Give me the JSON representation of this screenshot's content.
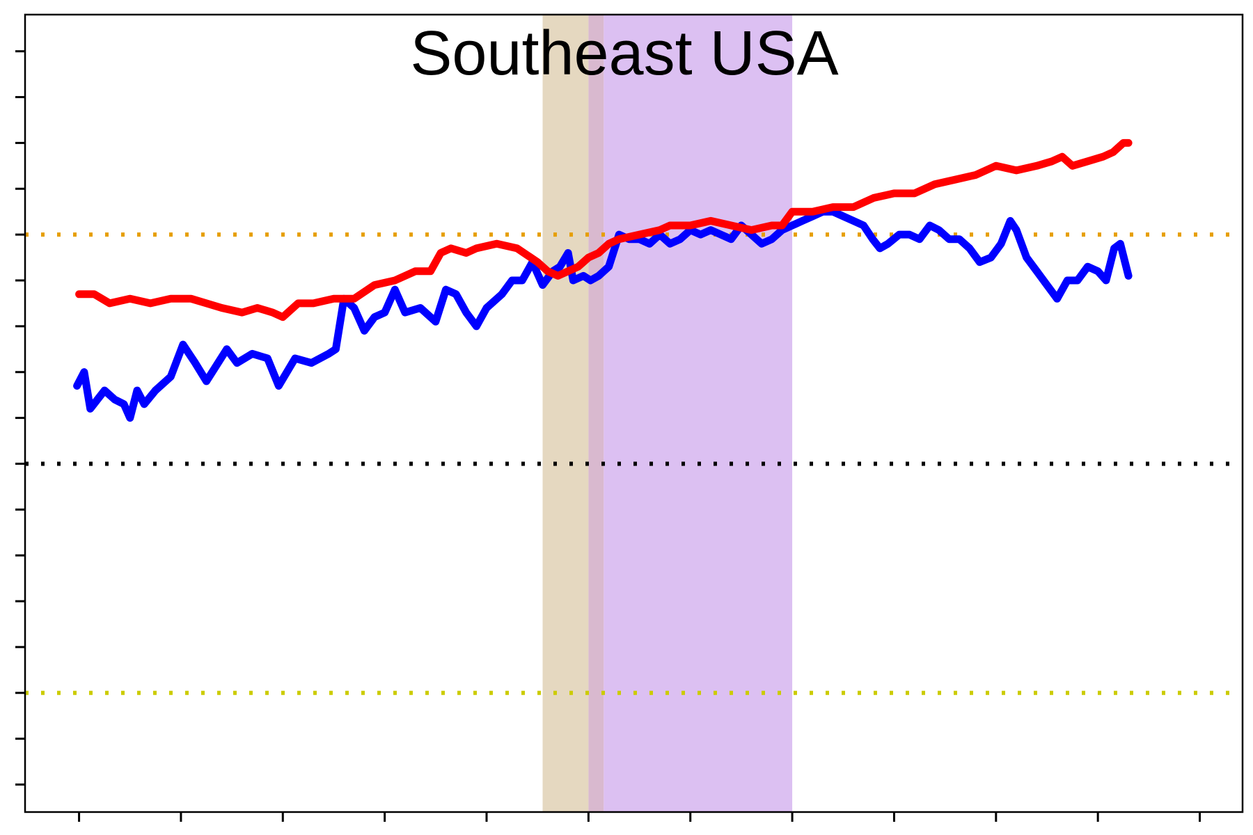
{
  "chart_data": {
    "type": "line",
    "title": "Southeast USA",
    "xlabel": "",
    "ylabel": "",
    "xlim": [
      -5.3,
      114.2
    ],
    "ylim": [
      -7.6,
      9.8
    ],
    "x_ticks": [
      0,
      10,
      20,
      30,
      40,
      50,
      60,
      70,
      80,
      90,
      100,
      110
    ],
    "y_ticks": [
      -7,
      -6,
      -5,
      -4,
      -3,
      -2,
      -1,
      0,
      1,
      2,
      3,
      4,
      5,
      6,
      7,
      8,
      9
    ],
    "reference_lines": [
      {
        "y": 0,
        "color": "#000000",
        "style": "dotted"
      },
      {
        "y": 5,
        "color": "#e69f00",
        "style": "dotted"
      },
      {
        "y": -5,
        "color": "#cccc00",
        "style": "dotted"
      }
    ],
    "shaded_regions": [
      {
        "x_start": 45.5,
        "x_end": 50,
        "color": "#e5d8c0"
      },
      {
        "x_start": 50,
        "x_end": 51.5,
        "color": "#d9b9cf"
      },
      {
        "x_start": 51.5,
        "x_end": 70,
        "color": "#dcc0f2"
      }
    ],
    "series": [
      {
        "color": "#0000ff",
        "points": [
          [
            -0.2,
            1.7
          ],
          [
            0.5,
            2.0
          ],
          [
            1.1,
            1.2
          ],
          [
            2.5,
            1.6
          ],
          [
            3.5,
            1.4
          ],
          [
            4.4,
            1.3
          ],
          [
            5.0,
            1.0
          ],
          [
            5.7,
            1.6
          ],
          [
            6.4,
            1.3
          ],
          [
            7.5,
            1.6
          ],
          [
            9.0,
            1.9
          ],
          [
            10.2,
            2.6
          ],
          [
            11.4,
            2.2
          ],
          [
            12.5,
            1.8
          ],
          [
            14.5,
            2.5
          ],
          [
            15.5,
            2.2
          ],
          [
            17.0,
            2.4
          ],
          [
            18.5,
            2.3
          ],
          [
            19.6,
            1.7
          ],
          [
            21.2,
            2.3
          ],
          [
            22.8,
            2.2
          ],
          [
            24.5,
            2.4
          ],
          [
            25.2,
            2.5
          ],
          [
            26.0,
            3.6
          ],
          [
            27.0,
            3.4
          ],
          [
            28.0,
            2.9
          ],
          [
            29.0,
            3.2
          ],
          [
            30.0,
            3.3
          ],
          [
            31.0,
            3.8
          ],
          [
            32.0,
            3.3
          ],
          [
            33.5,
            3.4
          ],
          [
            35.0,
            3.1
          ],
          [
            36.0,
            3.8
          ],
          [
            37.0,
            3.7
          ],
          [
            38.0,
            3.3
          ],
          [
            39.0,
            3.0
          ],
          [
            40.0,
            3.4
          ],
          [
            41.5,
            3.7
          ],
          [
            42.5,
            4.0
          ],
          [
            43.5,
            4.0
          ],
          [
            44.5,
            4.4
          ],
          [
            45.5,
            3.9
          ],
          [
            46.5,
            4.2
          ],
          [
            47.2,
            4.3
          ],
          [
            48.0,
            4.6
          ],
          [
            48.5,
            4.0
          ],
          [
            49.5,
            4.1
          ],
          [
            50.2,
            4.0
          ],
          [
            51.0,
            4.1
          ],
          [
            52.0,
            4.3
          ],
          [
            53.0,
            5.0
          ],
          [
            54.0,
            4.9
          ],
          [
            55.0,
            4.9
          ],
          [
            56.0,
            4.8
          ],
          [
            57.0,
            5.0
          ],
          [
            58.0,
            4.8
          ],
          [
            59.0,
            4.9
          ],
          [
            60.0,
            5.1
          ],
          [
            61.0,
            5.0
          ],
          [
            62.0,
            5.1
          ],
          [
            63.0,
            5.0
          ],
          [
            64.0,
            4.9
          ],
          [
            65.0,
            5.2
          ],
          [
            66.0,
            5.0
          ],
          [
            67.0,
            4.8
          ],
          [
            68.0,
            4.9
          ],
          [
            69.0,
            5.1
          ],
          [
            70.0,
            5.2
          ],
          [
            71.0,
            5.3
          ],
          [
            72.0,
            5.4
          ],
          [
            73.0,
            5.5
          ],
          [
            74.0,
            5.5
          ],
          [
            75.0,
            5.4
          ],
          [
            76.0,
            5.3
          ],
          [
            77.0,
            5.2
          ],
          [
            77.9,
            4.9
          ],
          [
            78.6,
            4.7
          ],
          [
            79.4,
            4.8
          ],
          [
            80.5,
            5.0
          ],
          [
            81.5,
            5.0
          ],
          [
            82.5,
            4.9
          ],
          [
            83.5,
            5.2
          ],
          [
            84.4,
            5.1
          ],
          [
            85.4,
            4.9
          ],
          [
            86.4,
            4.9
          ],
          [
            87.4,
            4.7
          ],
          [
            88.4,
            4.4
          ],
          [
            89.5,
            4.5
          ],
          [
            90.5,
            4.8
          ],
          [
            91.4,
            5.3
          ],
          [
            92.0,
            5.1
          ],
          [
            93.0,
            4.5
          ],
          [
            94.0,
            4.2
          ],
          [
            95.0,
            3.9
          ],
          [
            96.0,
            3.6
          ],
          [
            97.0,
            4.0
          ],
          [
            98.0,
            4.0
          ],
          [
            99.0,
            4.3
          ],
          [
            100.0,
            4.2
          ],
          [
            100.8,
            4.0
          ],
          [
            101.6,
            4.7
          ],
          [
            102.2,
            4.8
          ],
          [
            103.0,
            4.1
          ]
        ]
      },
      {
        "color": "#ff0000",
        "points": [
          [
            0.0,
            3.7
          ],
          [
            1.5,
            3.7
          ],
          [
            3.0,
            3.5
          ],
          [
            5.0,
            3.6
          ],
          [
            7.0,
            3.5
          ],
          [
            9.0,
            3.6
          ],
          [
            11.0,
            3.6
          ],
          [
            12.5,
            3.5
          ],
          [
            14.0,
            3.4
          ],
          [
            16.0,
            3.3
          ],
          [
            17.5,
            3.4
          ],
          [
            19.0,
            3.3
          ],
          [
            20.0,
            3.2
          ],
          [
            21.5,
            3.5
          ],
          [
            23.0,
            3.5
          ],
          [
            25.0,
            3.6
          ],
          [
            27.0,
            3.6
          ],
          [
            29.0,
            3.9
          ],
          [
            31.0,
            4.0
          ],
          [
            33.0,
            4.2
          ],
          [
            34.5,
            4.2
          ],
          [
            35.5,
            4.6
          ],
          [
            36.5,
            4.7
          ],
          [
            38.0,
            4.6
          ],
          [
            39.0,
            4.7
          ],
          [
            41.0,
            4.8
          ],
          [
            43.0,
            4.7
          ],
          [
            45.0,
            4.4
          ],
          [
            46.0,
            4.2
          ],
          [
            47.0,
            4.1
          ],
          [
            48.0,
            4.2
          ],
          [
            49.0,
            4.3
          ],
          [
            50.0,
            4.5
          ],
          [
            51.0,
            4.6
          ],
          [
            52.0,
            4.8
          ],
          [
            53.0,
            4.9
          ],
          [
            55.0,
            5.0
          ],
          [
            57.0,
            5.1
          ],
          [
            58.0,
            5.2
          ],
          [
            60.0,
            5.2
          ],
          [
            62.0,
            5.3
          ],
          [
            64.0,
            5.2
          ],
          [
            66.0,
            5.1
          ],
          [
            68.0,
            5.2
          ],
          [
            69.0,
            5.2
          ],
          [
            70.0,
            5.5
          ],
          [
            72.0,
            5.5
          ],
          [
            74.0,
            5.6
          ],
          [
            75.0,
            5.6
          ],
          [
            76.0,
            5.6
          ],
          [
            77.0,
            5.7
          ],
          [
            78.0,
            5.8
          ],
          [
            80.0,
            5.9
          ],
          [
            82.0,
            5.9
          ],
          [
            84.0,
            6.1
          ],
          [
            86.0,
            6.2
          ],
          [
            88.0,
            6.3
          ],
          [
            89.0,
            6.4
          ],
          [
            90.0,
            6.5
          ],
          [
            92.0,
            6.4
          ],
          [
            94.0,
            6.5
          ],
          [
            95.5,
            6.6
          ],
          [
            96.5,
            6.7
          ],
          [
            97.5,
            6.5
          ],
          [
            99.0,
            6.6
          ],
          [
            100.5,
            6.7
          ],
          [
            101.5,
            6.8
          ],
          [
            102.5,
            7.0
          ],
          [
            103.0,
            7.0
          ]
        ]
      }
    ]
  }
}
